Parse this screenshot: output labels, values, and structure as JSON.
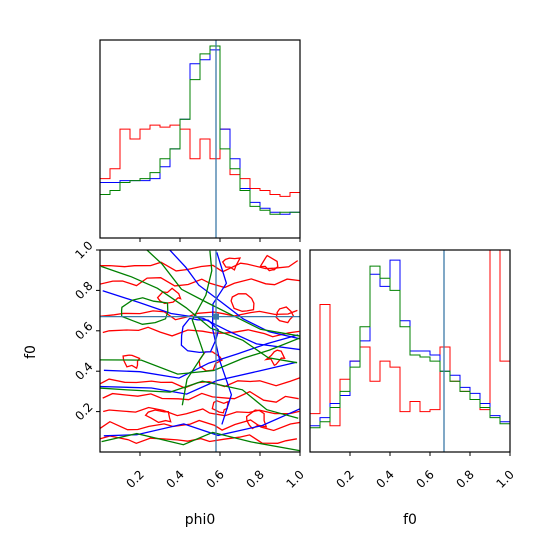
{
  "chart_data": [
    {
      "type": "histogram",
      "panel": "phi0-marginal",
      "xlim": [
        0,
        1
      ],
      "bins": [
        0.0,
        0.05,
        0.1,
        0.15,
        0.2,
        0.25,
        0.3,
        0.35,
        0.4,
        0.45,
        0.5,
        0.55,
        0.6,
        0.65,
        0.7,
        0.75,
        0.8,
        0.85,
        0.9,
        0.95,
        1.0
      ],
      "truth": 0.58,
      "series": [
        {
          "color": "#ff0000",
          "values": [
            0.3,
            0.35,
            0.55,
            0.5,
            0.55,
            0.57,
            0.56,
            0.57,
            0.55,
            0.4,
            0.5,
            0.4,
            0.55,
            0.32,
            0.3,
            0.25,
            0.24,
            0.22,
            0.21,
            0.23
          ]
        },
        {
          "color": "#0000ff",
          "values": [
            0.28,
            0.28,
            0.29,
            0.29,
            0.29,
            0.3,
            0.36,
            0.45,
            0.6,
            0.88,
            0.9,
            0.95,
            0.55,
            0.4,
            0.25,
            0.18,
            0.15,
            0.13,
            0.12,
            0.13
          ]
        },
        {
          "color": "#008000",
          "values": [
            0.22,
            0.24,
            0.28,
            0.29,
            0.3,
            0.33,
            0.4,
            0.45,
            0.6,
            0.8,
            0.93,
            0.97,
            0.45,
            0.35,
            0.24,
            0.16,
            0.14,
            0.12,
            0.13,
            0.13
          ]
        }
      ]
    },
    {
      "type": "contour",
      "panel": "phi0-f0-joint",
      "xlim": [
        0,
        1
      ],
      "ylim": [
        0,
        1
      ],
      "truth": [
        0.58,
        0.67
      ],
      "series": [
        {
          "color": "#ff0000"
        },
        {
          "color": "#0000ff"
        },
        {
          "color": "#008000"
        }
      ]
    },
    {
      "type": "histogram",
      "panel": "f0-marginal",
      "xlim": [
        0,
        1
      ],
      "bins": [
        0.0,
        0.05,
        0.1,
        0.15,
        0.2,
        0.25,
        0.3,
        0.35,
        0.4,
        0.45,
        0.5,
        0.55,
        0.6,
        0.65,
        0.7,
        0.75,
        0.8,
        0.85,
        0.9,
        0.95,
        1.0
      ],
      "truth": 0.67,
      "series": [
        {
          "color": "#ff0000",
          "values": [
            0.19,
            0.73,
            0.13,
            0.36,
            0.45,
            0.52,
            0.35,
            0.45,
            0.42,
            0.2,
            0.25,
            0.2,
            0.21,
            0.52,
            0.35,
            0.3,
            0.26,
            0.21,
            2.0,
            0.45
          ]
        },
        {
          "color": "#0000ff",
          "values": [
            0.13,
            0.17,
            0.24,
            0.28,
            0.45,
            0.55,
            0.88,
            0.82,
            0.95,
            0.65,
            0.5,
            0.5,
            0.48,
            0.4,
            0.38,
            0.32,
            0.29,
            0.24,
            0.18,
            0.15
          ]
        },
        {
          "color": "#008000",
          "values": [
            0.12,
            0.15,
            0.22,
            0.3,
            0.42,
            0.62,
            0.92,
            0.86,
            0.8,
            0.62,
            0.48,
            0.47,
            0.45,
            0.4,
            0.35,
            0.3,
            0.26,
            0.22,
            0.17,
            0.14
          ]
        }
      ]
    }
  ],
  "axes": {
    "ticks": [
      "0.2",
      "0.4",
      "0.6",
      "0.8",
      "1.0"
    ],
    "joint_ylabel": "f0",
    "joint_xlabel": "phi0",
    "marginal_xlabel": "f0"
  },
  "colors": {
    "truth_line": "#3c7aa8",
    "red": "#ff0000",
    "blue": "#0000ff",
    "green": "#008000"
  }
}
